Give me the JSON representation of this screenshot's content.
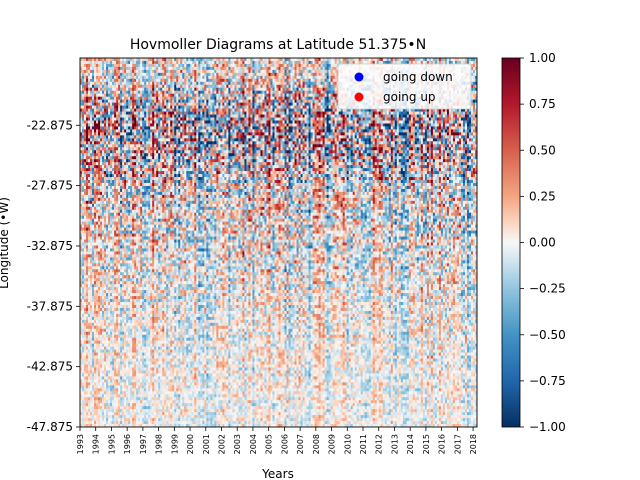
{
  "chart_data": {
    "type": "heatmap",
    "title": "Hovmoller Diagrams at Latitude 51.375•N",
    "xlabel": "Years",
    "ylabel": "Longitude (•W)",
    "x_ticks": [
      "1993",
      "1994",
      "1995",
      "1996",
      "1997",
      "1998",
      "1999",
      "2000",
      "2001",
      "2002",
      "2003",
      "2004",
      "2005",
      "2006",
      "2007",
      "2008",
      "2009",
      "2010",
      "2011",
      "2012",
      "2013",
      "2014",
      "2015",
      "2016",
      "2017",
      "2018"
    ],
    "y_ticks": [
      "-22.875",
      "-27.875",
      "-32.875",
      "-37.875",
      "-42.875",
      "-47.875"
    ],
    "y_tick_values": [
      -22.875,
      -27.875,
      -32.875,
      -37.875,
      -42.875,
      -47.875
    ],
    "ylim": [
      -47.875,
      -17.3
    ],
    "xlim": [
      1993.0,
      2018.25
    ],
    "colormap": "RdBu_r",
    "colorbar": {
      "vmin": -1.0,
      "vmax": 1.0,
      "ticks": [
        1.0,
        0.75,
        0.5,
        0.25,
        0.0,
        -0.25,
        -0.5,
        -0.75,
        -1.0
      ],
      "tick_labels": [
        "1.00",
        "0.75",
        "0.50",
        "0.25",
        "0.00",
        "−0.25",
        "−0.50",
        "−0.75",
        "−1.00"
      ]
    },
    "legend": {
      "placement": "top-right",
      "entries": [
        {
          "label": "going down",
          "color": "#0000ff"
        },
        {
          "label": "going up",
          "color": "#ff0000"
        }
      ]
    },
    "field_description_intensity": [
      {
        "lon": -18.0,
        "amplitude": 0.45
      },
      {
        "lon": -22.875,
        "amplitude": 1.0
      },
      {
        "lon": -25.0,
        "amplitude": 0.95
      },
      {
        "lon": -27.875,
        "amplitude": 0.6
      },
      {
        "lon": -32.875,
        "amplitude": 0.45
      },
      {
        "lon": -37.875,
        "amplitude": 0.32
      },
      {
        "lon": -42.875,
        "amplitude": 0.25
      },
      {
        "lon": -47.875,
        "amplitude": 0.2
      }
    ]
  }
}
